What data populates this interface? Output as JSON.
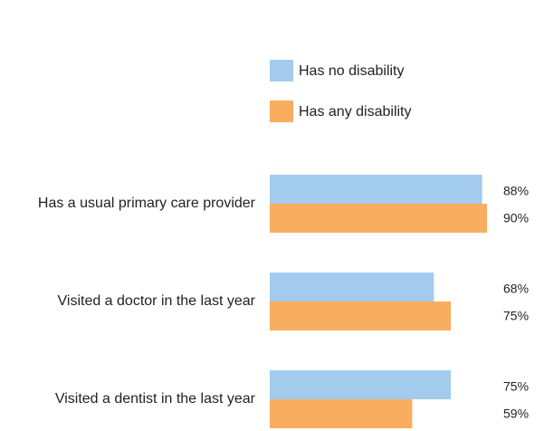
{
  "chart_data": {
    "type": "bar",
    "orientation": "horizontal",
    "categories": [
      "Has a usual primary care provider",
      "Visited a doctor in the last year",
      "Visited a dentist in the last year"
    ],
    "series": [
      {
        "name": "Has no disability",
        "color": "#a3cbee",
        "values": [
          88,
          68,
          75
        ],
        "value_labels": [
          "88%",
          "68%",
          "75%"
        ]
      },
      {
        "name": "Has any disability",
        "color": "#f9ad5e",
        "values": [
          90,
          75,
          59
        ],
        "value_labels": [
          "90%",
          "75%",
          "59%"
        ]
      }
    ],
    "legend": "top"
  }
}
